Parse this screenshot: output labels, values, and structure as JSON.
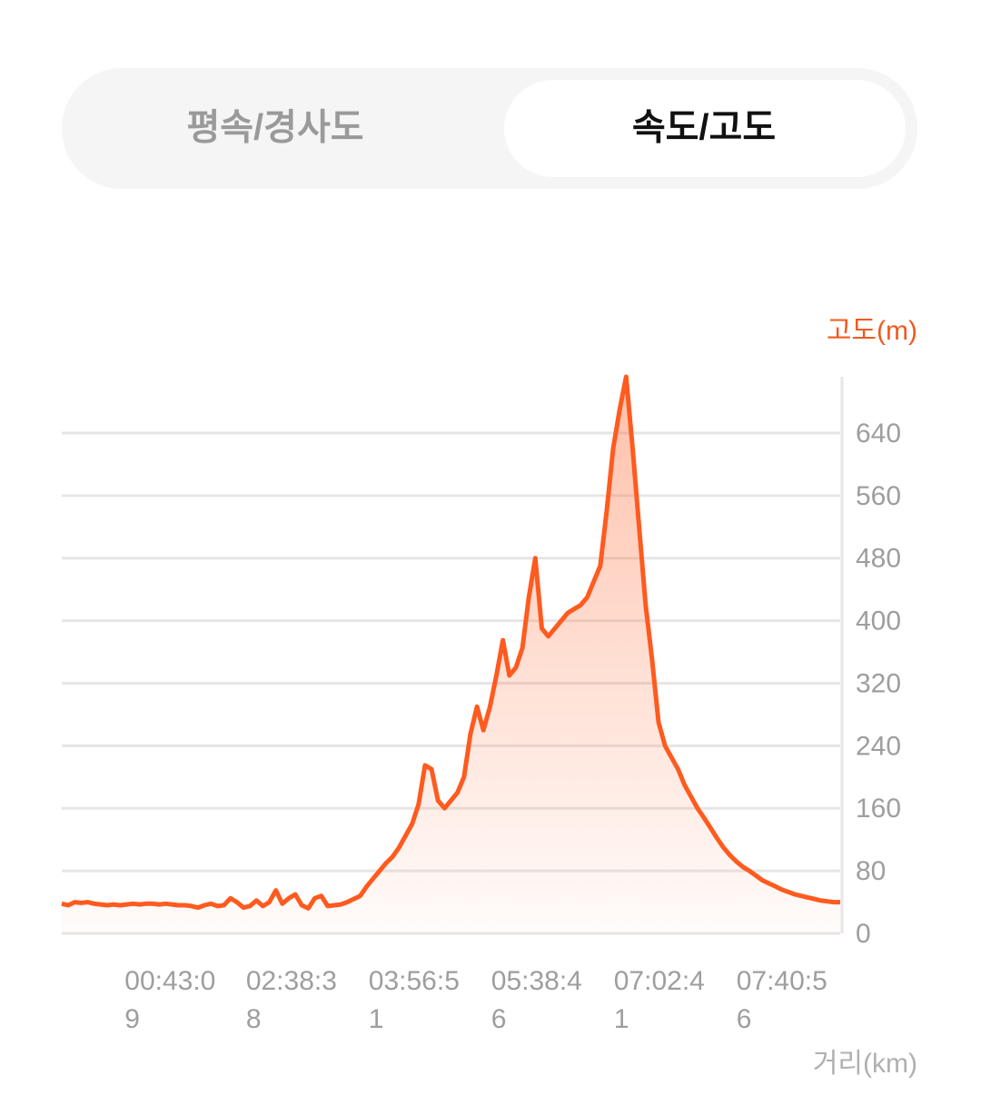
{
  "tabs": [
    "평속/경사도",
    "속도/고도"
  ],
  "active_tab": 1,
  "chart_data": {
    "type": "area",
    "y_label": "고도(m)",
    "x_label": "거리(km)",
    "color": "#ff5a1f",
    "values": [
      38,
      36,
      40,
      39,
      40,
      38,
      37,
      36,
      37,
      36,
      37,
      38,
      37,
      38,
      38,
      37,
      38,
      37,
      36,
      36,
      35,
      33,
      36,
      38,
      35,
      36,
      45,
      40,
      33,
      35,
      42,
      35,
      40,
      55,
      38,
      45,
      50,
      36,
      32,
      45,
      48,
      35,
      36,
      37,
      40,
      44,
      48,
      60,
      70,
      80,
      90,
      98,
      110,
      125,
      140,
      165,
      215,
      210,
      170,
      160,
      170,
      180,
      200,
      255,
      290,
      260,
      290,
      330,
      375,
      330,
      340,
      365,
      430,
      480,
      390,
      380,
      390,
      400,
      410,
      415,
      420,
      430,
      450,
      470,
      540,
      620,
      670,
      712,
      620,
      520,
      420,
      350,
      270,
      240,
      225,
      210,
      190,
      175,
      160,
      148,
      135,
      122,
      110,
      100,
      92,
      85,
      80,
      74,
      68,
      64,
      60,
      56,
      53,
      50,
      48,
      46,
      44,
      42,
      41,
      40,
      40
    ],
    "xlim": [
      0,
      120
    ],
    "xticks": [
      {
        "value": 9.7,
        "label": "00:43:09"
      },
      {
        "value": 28.4,
        "label": "02:38:38"
      },
      {
        "value": 47.3,
        "label": "03:56:51"
      },
      {
        "value": 66.2,
        "label": "05:38:46"
      },
      {
        "value": 85.1,
        "label": "07:02:41"
      },
      {
        "value": 104,
        "label": "07:40:56"
      }
    ],
    "ylim": [
      0,
      712
    ],
    "yticks": [
      0,
      80,
      160,
      240,
      320,
      400,
      480,
      560,
      640
    ],
    "grid": true
  }
}
